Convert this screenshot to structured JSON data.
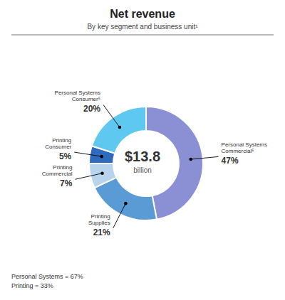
{
  "chart_data": {
    "type": "pie",
    "donut": true,
    "title": "Net revenue",
    "subtitle": "By key segment and business unit¹",
    "categories": [
      "Personal Systems\nCommercial⁵",
      "Printing\nSupplies",
      "Printing\nCommercial",
      "Printing\nConsumer",
      "Personal Systems\nConsumer⁵"
    ],
    "values": [
      47,
      21,
      7,
      5,
      20
    ],
    "value_labels": [
      "47%",
      "21%",
      "7%",
      "5%",
      "20%"
    ],
    "colors": [
      "#8b8fd4",
      "#5b9bd5",
      "#b8d3ec",
      "#2e6bbf",
      "#5ec8f0"
    ],
    "data_labels": true,
    "center_text": "$13.8",
    "center_subtext": "billion",
    "footer": [
      "Personal Systems = 67%",
      "Printing = 33%"
    ]
  }
}
